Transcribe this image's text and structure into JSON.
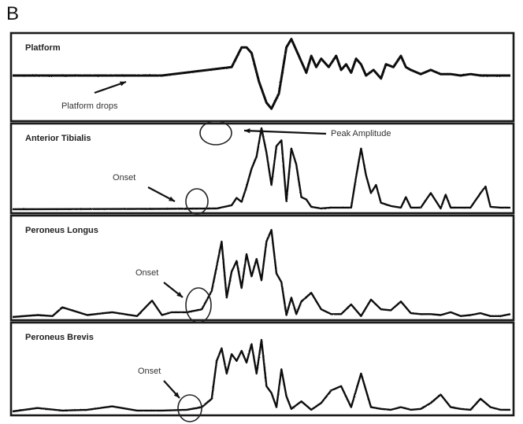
{
  "figure_label": "B",
  "chart_data": [
    {
      "type": "line",
      "title": "Platform",
      "annotations": [
        {
          "label": "Platform drops"
        }
      ],
      "series": [
        {
          "x": [
            0,
            30,
            44,
            46,
            47,
            48,
            49.5,
            51,
            52,
            53.5,
            55,
            56,
            57.5,
            59,
            60,
            61,
            62,
            63.5,
            65,
            66,
            67,
            68,
            69,
            70,
            71,
            72.5,
            74,
            75,
            76.5,
            78,
            79,
            80,
            82,
            84,
            86,
            88,
            90,
            92,
            94,
            96,
            100
          ],
          "values": [
            0,
            0,
            3,
            10,
            10,
            8,
            -2,
            -9,
            -11,
            -6,
            10,
            13,
            7,
            1,
            7,
            3,
            6,
            3,
            7,
            2,
            4,
            1,
            6,
            4,
            0,
            2,
            -1,
            4,
            3,
            7,
            3,
            2,
            0.5,
            2,
            0.5,
            0.5,
            0,
            0.5,
            0,
            0,
            0
          ]
        }
      ]
    },
    {
      "type": "line",
      "title": "Anterior Tibialis",
      "annotations": [
        {
          "label": "Peak Amplitude"
        },
        {
          "label": "Onset"
        }
      ],
      "series": [
        {
          "x": [
            0,
            30,
            41,
            44,
            45,
            46,
            47,
            48,
            49,
            50,
            51,
            52,
            53,
            54,
            55,
            56,
            57,
            58,
            59,
            60,
            62,
            64,
            66,
            68,
            69,
            70,
            71,
            72,
            73,
            74,
            76,
            78,
            79,
            80,
            82,
            84,
            86,
            87,
            88,
            90,
            92,
            94,
            95,
            96,
            98,
            100
          ],
          "values": [
            0,
            0.5,
            1,
            5,
            14,
            9,
            28,
            50,
            65,
            100,
            70,
            30,
            78,
            85,
            10,
            75,
            55,
            15,
            12,
            3,
            1,
            2,
            2,
            2,
            40,
            75,
            42,
            20,
            30,
            8,
            4,
            2,
            15,
            2,
            2,
            20,
            1,
            18,
            2,
            2,
            2,
            20,
            28,
            3,
            2,
            2
          ]
        }
      ]
    },
    {
      "type": "line",
      "title": "Peroneus Longus",
      "annotations": [
        {
          "label": "Onset"
        }
      ],
      "series": [
        {
          "x": [
            0,
            5,
            8,
            10,
            15,
            20,
            25,
            28,
            30,
            32,
            35,
            38,
            40,
            42,
            43,
            44,
            45,
            46,
            47,
            48,
            49,
            50,
            51,
            52,
            53,
            54,
            55,
            56,
            57,
            58,
            60,
            62,
            64,
            66,
            68,
            70,
            72,
            74,
            76,
            78,
            80,
            82,
            84,
            86,
            88,
            90,
            92,
            94,
            96,
            98,
            100
          ],
          "values": [
            0,
            2,
            1,
            10,
            2,
            5,
            1,
            17,
            2,
            5,
            5,
            8,
            27,
            78,
            20,
            47,
            58,
            30,
            65,
            42,
            60,
            38,
            78,
            90,
            45,
            36,
            2,
            20,
            3,
            16,
            25,
            8,
            3,
            3,
            13,
            1,
            18,
            8,
            7,
            16,
            4,
            3,
            3,
            2,
            5,
            1,
            2,
            4,
            1,
            1,
            3
          ]
        }
      ]
    },
    {
      "type": "line",
      "title": "Peroneus Brevis",
      "annotations": [
        {
          "label": "Onset"
        }
      ],
      "series": [
        {
          "x": [
            0,
            5,
            10,
            15,
            20,
            25,
            30,
            35,
            38,
            40,
            41,
            42,
            43,
            44,
            45,
            46,
            47,
            48,
            49,
            50,
            51,
            52,
            53,
            54,
            55,
            56,
            58,
            60,
            62,
            64,
            66,
            68,
            70,
            72,
            74,
            76,
            78,
            80,
            82,
            84,
            86,
            88,
            90,
            92,
            94,
            96,
            98,
            100
          ],
          "values": [
            0,
            4,
            1,
            2,
            6,
            1,
            1,
            2,
            5,
            15,
            60,
            75,
            45,
            68,
            60,
            72,
            58,
            80,
            45,
            85,
            30,
            22,
            5,
            50,
            18,
            3,
            12,
            2,
            10,
            25,
            30,
            5,
            45,
            5,
            3,
            2,
            5,
            2,
            3,
            10,
            20,
            5,
            3,
            2,
            15,
            5,
            2,
            2
          ]
        }
      ]
    }
  ]
}
